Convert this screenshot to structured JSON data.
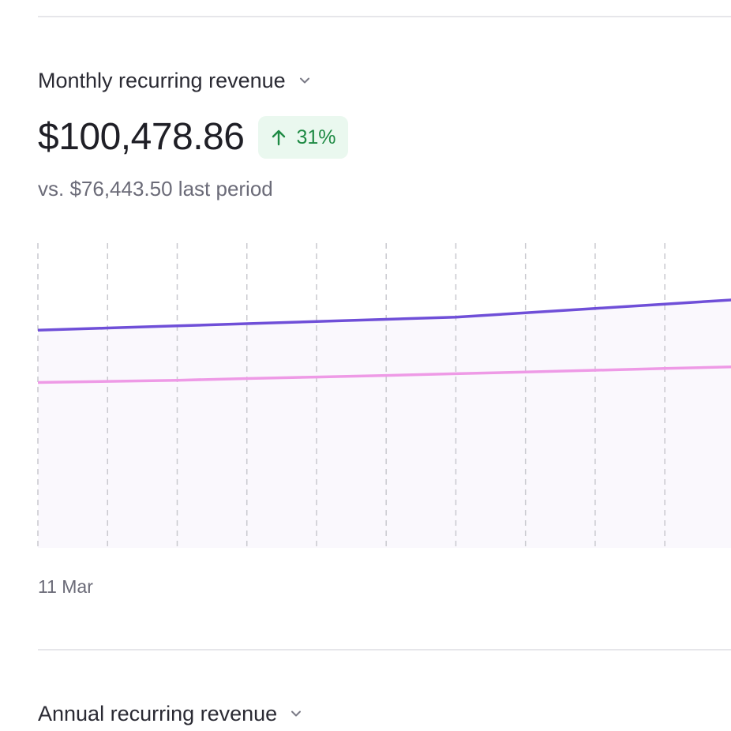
{
  "mrr": {
    "title": "Monthly recurring revenue",
    "value": "$100,478.86",
    "change": "31%",
    "change_direction": "up",
    "comparison": "vs. $76,443.50 last period"
  },
  "arr": {
    "title": "Annual recurring revenue"
  },
  "icons": {
    "dropdown": "chevron-down-icon",
    "trend": "arrow-up-icon"
  },
  "colors": {
    "current_series": "#6f4fd8",
    "previous_series": "#ee9ae6",
    "badge_bg": "#eaf8ef",
    "badge_text": "#1e8a44"
  },
  "chart_data": {
    "type": "line",
    "x": [
      "11 Mar",
      "",
      "",
      "",
      "",
      "",
      "",
      "",
      "",
      "",
      ""
    ],
    "series": [
      {
        "values": [
          100,
          101,
          102,
          103,
          104,
          105,
          106,
          108,
          110,
          112,
          114
        ]
      },
      {
        "values": [
          76,
          76.5,
          77,
          77.8,
          78.5,
          79.2,
          80,
          80.8,
          81.6,
          82.4,
          83.2
        ]
      }
    ],
    "ylim": [
      0,
      140
    ],
    "grid": "vertical-dashed"
  }
}
